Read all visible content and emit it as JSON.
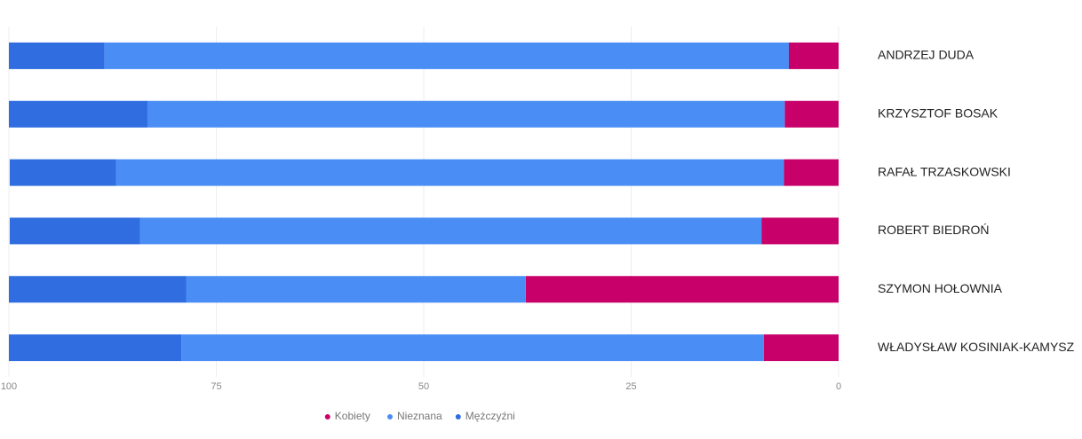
{
  "chart_data": {
    "type": "stacked-bar-horizontal",
    "categories": [
      "ANDRZEJ DUDA",
      "KRZYSZTOF BOSAK",
      "RAFAŁ TRZASKOWSKI",
      "ROBERT BIEDROŃ",
      "SZYMON HOŁOWNIA",
      "WŁADYSŁAW KOSINIAK-KAMYSZ"
    ],
    "series": [
      {
        "name": "Kobiety",
        "color": "#c8006a",
        "values": [
          6.0,
          6.5,
          6.6,
          9.3,
          37.7,
          9.0
        ]
      },
      {
        "name": "Nieznana",
        "color": "#4a8ef5",
        "values": [
          82.5,
          76.8,
          80.5,
          74.9,
          40.9,
          70.2
        ]
      },
      {
        "name": "Mężczyźni",
        "color": "#2f6de0",
        "values": [
          11.5,
          16.7,
          12.8,
          15.7,
          21.4,
          20.8
        ]
      }
    ],
    "xlim": [
      100,
      0
    ],
    "xticks": [
      100,
      75,
      50,
      25,
      0
    ],
    "grid": true,
    "legend": "bottom"
  }
}
